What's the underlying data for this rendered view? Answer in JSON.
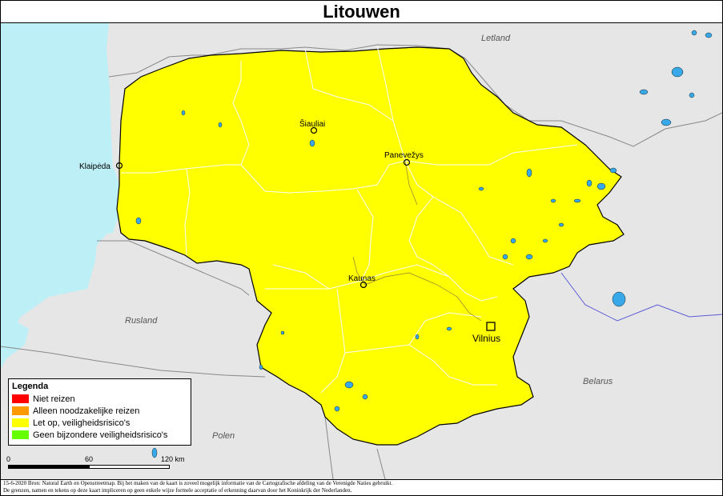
{
  "title": "Litouwen",
  "countries": {
    "letland": "Letland",
    "rusland": "Rusland",
    "belarus": "Belarus",
    "polen": "Polen"
  },
  "cities": {
    "siauliai": "Šiauliai",
    "panevezys": "Panevežys",
    "klaipeda": "Klaipėda",
    "kaunas": "Kaunas",
    "vilnius": "Vilnius"
  },
  "legend": {
    "title": "Legenda",
    "items": [
      {
        "label": "Niet reizen",
        "color": "#ff0000"
      },
      {
        "label": "Alleen noodzakelijke reizen",
        "color": "#ff9900"
      },
      {
        "label": "Let op, veiligheidsrisico's",
        "color": "#ffff00"
      },
      {
        "label": "Geen bijzondere veiligheidsrisico's",
        "color": "#66ff00"
      }
    ]
  },
  "scale": {
    "tick0": "0",
    "tick1": "60",
    "tick2": "120 km"
  },
  "footer": {
    "line1": "15-6-2020 Bron: Natural Earth en Openstreetmap. Bij het maken van de kaart is zoveel mogelijk informatie van de Cartografische afdeling van de Verenigde Naties gebruikt.",
    "line2": "De grenzen, namen en tekens op deze kaart impliceren op geen enkele wijze formele acceptatie of erkenning daarvan door het Koninkrijk der Nederlanden."
  },
  "colors": {
    "land": "#e6e6e6",
    "sea": "#bdeff7",
    "water": "#39a8e8",
    "country_fill": "#ffff00",
    "border": "#000000",
    "river": "#5b5bd6"
  }
}
